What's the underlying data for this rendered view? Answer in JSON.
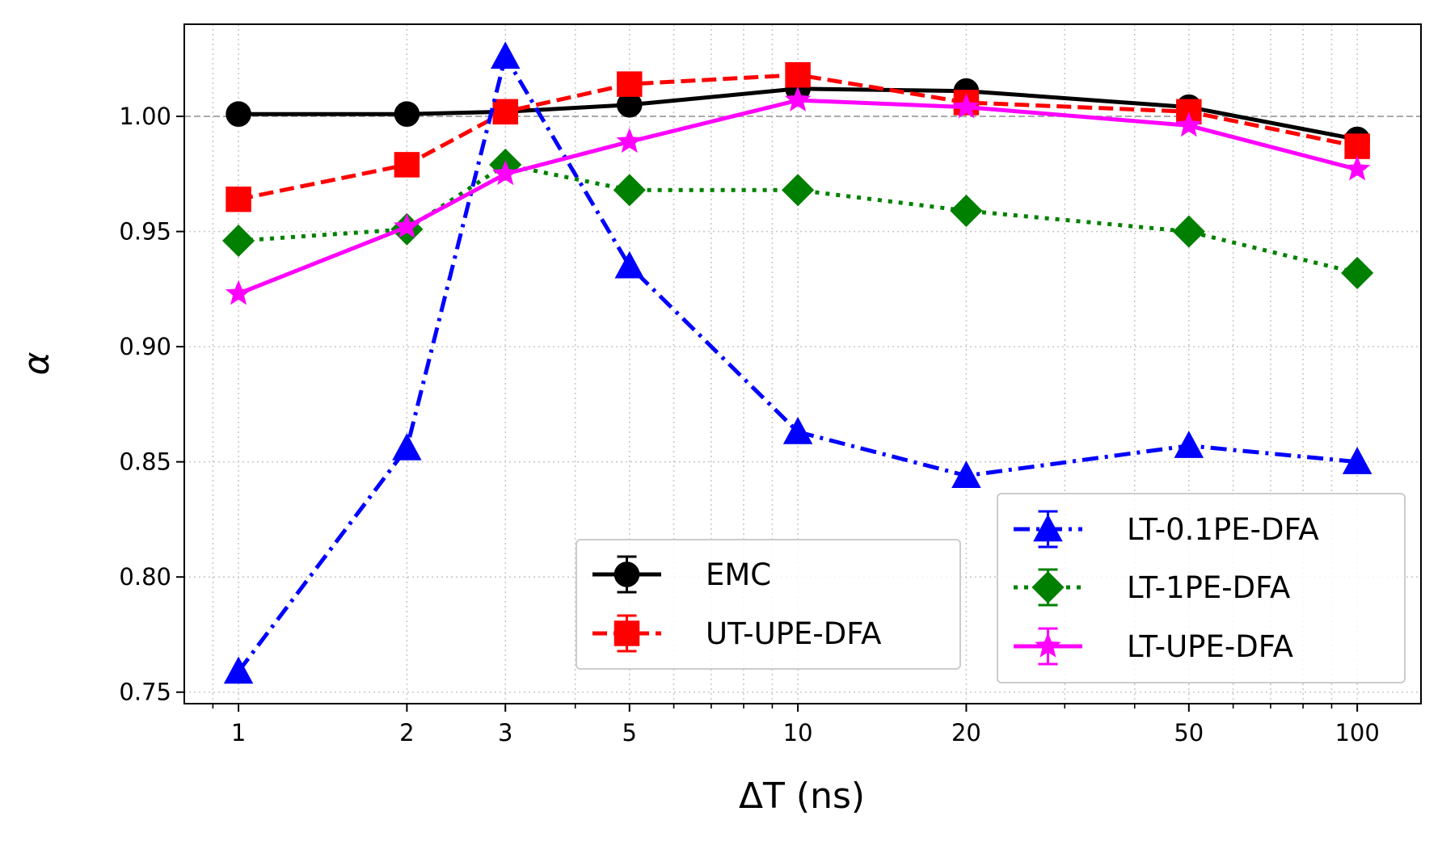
{
  "chart_data": {
    "type": "line",
    "title": "",
    "xlabel": "ΔT (ns)",
    "ylabel": "α",
    "xscale": "log",
    "xlim": [
      0.8,
      130
    ],
    "ylim": [
      0.745,
      1.04
    ],
    "grid": true,
    "reference_line": 1.0,
    "x": [
      1,
      2,
      3,
      5,
      10,
      20,
      50,
      100
    ],
    "x_ticks": [
      1,
      2,
      3,
      5,
      10,
      20,
      50,
      100
    ],
    "x_tick_labels": [
      "1",
      "2",
      "3",
      "5",
      "10",
      "20",
      "50",
      "100"
    ],
    "y_ticks": [
      0.75,
      0.8,
      0.85,
      0.9,
      0.95,
      1.0
    ],
    "y_tick_labels": [
      "0.75",
      "0.80",
      "0.85",
      "0.90",
      "0.95",
      "1.00"
    ],
    "series": [
      {
        "name": "EMC",
        "color": "#000000",
        "dash": "solid",
        "marker": "circle",
        "values": [
          1.001,
          1.001,
          1.002,
          1.005,
          1.012,
          1.011,
          1.004,
          0.99
        ]
      },
      {
        "name": "UT-UPE-DFA",
        "color": "#ff0000",
        "dash": "dashed",
        "marker": "square",
        "values": [
          0.964,
          0.979,
          1.002,
          1.014,
          1.018,
          1.006,
          1.002,
          0.987
        ]
      },
      {
        "name": "LT-0.1PE-DFA",
        "color": "#0000ff",
        "dash": "dashdot",
        "marker": "triangle",
        "values": [
          0.759,
          0.856,
          1.026,
          0.935,
          0.863,
          0.844,
          0.857,
          0.85
        ]
      },
      {
        "name": "LT-1PE-DFA",
        "color": "#008000",
        "dash": "dotted",
        "marker": "diamond",
        "values": [
          0.946,
          0.951,
          0.979,
          0.968,
          0.968,
          0.959,
          0.95,
          0.932
        ]
      },
      {
        "name": "LT-UPE-DFA",
        "color": "#ff00ff",
        "dash": "solid",
        "marker": "star",
        "values": [
          0.923,
          0.952,
          0.975,
          0.989,
          1.007,
          1.004,
          0.996,
          0.977
        ]
      }
    ],
    "legends": [
      {
        "location": "bottom-center",
        "entries": [
          "EMC",
          "UT-UPE-DFA"
        ]
      },
      {
        "location": "bottom-right",
        "entries": [
          "LT-0.1PE-DFA",
          "LT-1PE-DFA",
          "LT-UPE-DFA"
        ]
      }
    ]
  }
}
